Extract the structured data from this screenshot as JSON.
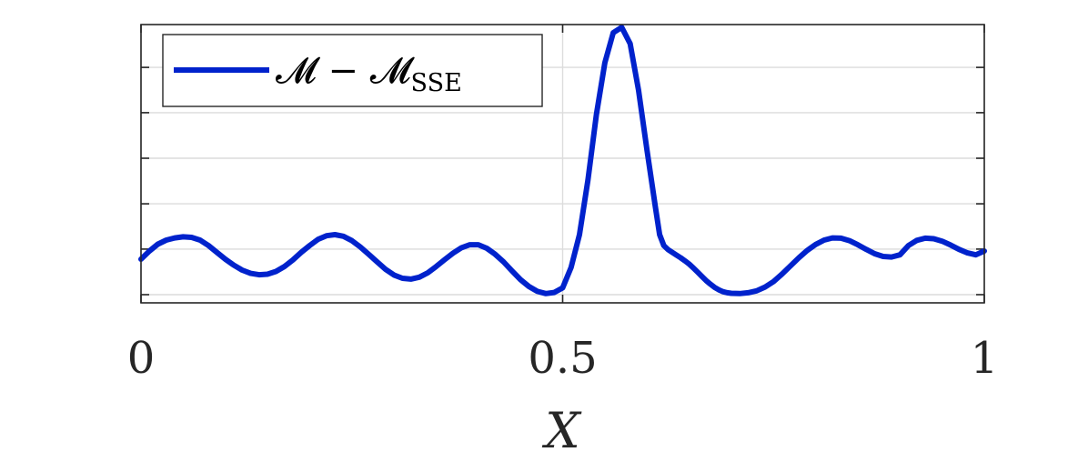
{
  "chart_data": {
    "type": "line",
    "xlabel": "X",
    "ylabel": "",
    "xlim": [
      0,
      1
    ],
    "ylim": [
      -0.03,
      0.99
    ],
    "x_ticks": [
      0,
      0.5,
      1
    ],
    "x_tick_labels": [
      "0",
      "0.5",
      "1"
    ],
    "y_ticks": [
      0,
      0.167,
      0.333,
      0.5,
      0.667,
      0.833
    ],
    "grid": true,
    "legend": {
      "placement": "top-left"
    },
    "series": [
      {
        "name": "𝓜 − 𝓜SSE",
        "color": "#0022cc",
        "x": [
          0,
          0.01,
          0.02,
          0.03,
          0.04,
          0.05,
          0.06,
          0.07,
          0.08,
          0.09,
          0.1,
          0.11,
          0.12,
          0.13,
          0.14,
          0.15,
          0.16,
          0.17,
          0.18,
          0.19,
          0.2,
          0.21,
          0.22,
          0.23,
          0.24,
          0.25,
          0.26,
          0.27,
          0.28,
          0.29,
          0.3,
          0.31,
          0.32,
          0.33,
          0.34,
          0.35,
          0.36,
          0.37,
          0.38,
          0.39,
          0.4,
          0.41,
          0.42,
          0.43,
          0.44,
          0.45,
          0.46,
          0.47,
          0.48,
          0.49,
          0.5,
          0.51,
          0.52,
          0.53,
          0.54,
          0.55,
          0.56,
          0.57,
          0.58,
          0.59,
          0.6,
          0.61,
          0.615,
          0.62,
          0.625,
          0.63,
          0.635,
          0.64,
          0.645,
          0.65,
          0.655,
          0.66,
          0.665,
          0.67,
          0.675,
          0.68,
          0.685,
          0.69,
          0.695,
          0.7,
          0.71,
          0.72,
          0.73,
          0.74,
          0.75,
          0.76,
          0.77,
          0.78,
          0.79,
          0.8,
          0.81,
          0.82,
          0.83,
          0.84,
          0.85,
          0.86,
          0.87,
          0.88,
          0.89,
          0.9,
          0.91,
          0.92,
          0.93,
          0.94,
          0.95,
          0.96,
          0.97,
          0.98,
          0.99,
          1.0
        ],
        "y": [
          0.13,
          0.16,
          0.185,
          0.2,
          0.208,
          0.212,
          0.21,
          0.2,
          0.18,
          0.155,
          0.13,
          0.108,
          0.09,
          0.078,
          0.073,
          0.075,
          0.085,
          0.103,
          0.127,
          0.155,
          0.18,
          0.203,
          0.216,
          0.22,
          0.214,
          0.198,
          0.175,
          0.148,
          0.12,
          0.093,
          0.072,
          0.06,
          0.057,
          0.064,
          0.08,
          0.103,
          0.128,
          0.152,
          0.172,
          0.183,
          0.183,
          0.17,
          0.148,
          0.12,
          0.087,
          0.055,
          0.03,
          0.012,
          0.004,
          0.008,
          0.025,
          0.1,
          0.22,
          0.42,
          0.66,
          0.85,
          0.96,
          0.98,
          0.92,
          0.75,
          0.53,
          0.32,
          0.22,
          0.18,
          0.165,
          0.155,
          0.145,
          0.135,
          0.124,
          0.112,
          0.098,
          0.083,
          0.067,
          0.052,
          0.039,
          0.027,
          0.018,
          0.011,
          0.007,
          0.005,
          0.004,
          0.007,
          0.014,
          0.028,
          0.048,
          0.075,
          0.105,
          0.135,
          0.162,
          0.184,
          0.2,
          0.208,
          0.207,
          0.198,
          0.183,
          0.166,
          0.15,
          0.14,
          0.138,
          0.146,
          0.18,
          0.199,
          0.207,
          0.205,
          0.196,
          0.182,
          0.166,
          0.153,
          0.146,
          0.16
        ]
      }
    ]
  }
}
